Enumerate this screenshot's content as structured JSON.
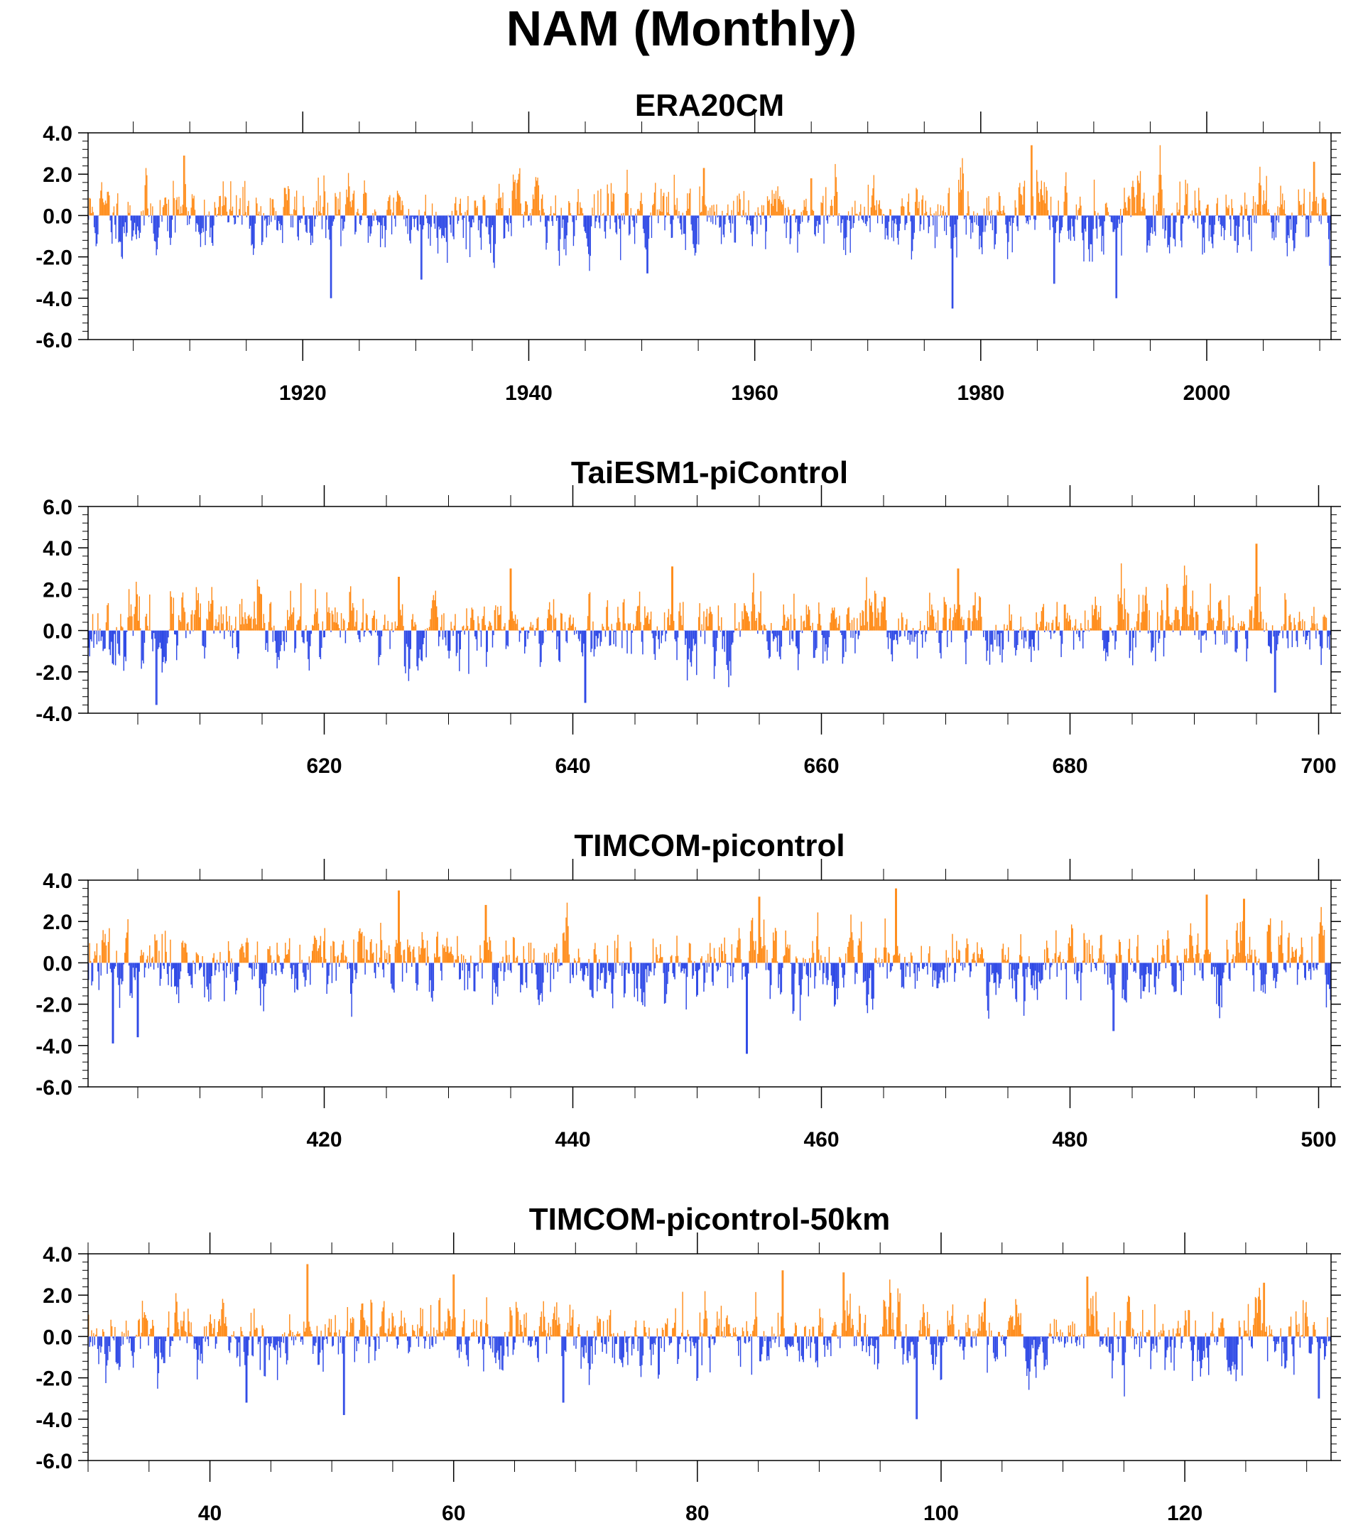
{
  "title": "NAM (Monthly)",
  "colors": {
    "positive": "#ff8c1a",
    "negative": "#2e49e6",
    "axis": "#000000"
  },
  "chart_data": [
    {
      "type": "bar",
      "title": "ERA20CM",
      "xlim": [
        1901,
        2011
      ],
      "ylim": [
        -6,
        4
      ],
      "ytick_labels": [
        "4.0",
        "2.0",
        "0.0",
        "-2.0",
        "-4.0",
        "-6.0"
      ],
      "ytick_values": [
        4,
        2,
        0,
        -2,
        -4,
        -6
      ],
      "xtick_labels": [
        "1920",
        "1940",
        "1960",
        "1980",
        "2000"
      ],
      "xtick_values": [
        1920,
        1940,
        1960,
        1980,
        2000
      ],
      "minor_x_step": 5,
      "months": 1320,
      "amp": 1.0,
      "peaks": [
        [
          1909.5,
          2.9
        ],
        [
          1922.5,
          -4.0
        ],
        [
          1930.5,
          -3.1
        ],
        [
          1950.5,
          -2.8
        ],
        [
          1955.5,
          2.3
        ],
        [
          1965,
          1.8
        ],
        [
          1977.5,
          -4.5
        ],
        [
          1984.5,
          3.4
        ],
        [
          1986.5,
          -3.3
        ],
        [
          1992,
          -4.0
        ],
        [
          2009.5,
          2.6
        ]
      ],
      "seed": 11
    },
    {
      "type": "bar",
      "title": "TaiESM1-piControl",
      "xlim": [
        601,
        701
      ],
      "ylim": [
        -4,
        6
      ],
      "ytick_labels": [
        "6.0",
        "4.0",
        "2.0",
        "0.0",
        "-2.0",
        "-4.0"
      ],
      "ytick_values": [
        6,
        4,
        2,
        0,
        -2,
        -4
      ],
      "xtick_labels": [
        "620",
        "640",
        "660",
        "680",
        "700"
      ],
      "xtick_values": [
        620,
        640,
        660,
        680,
        700
      ],
      "minor_x_step": 5,
      "months": 1200,
      "amp": 1.0,
      "peaks": [
        [
          606.5,
          -3.6
        ],
        [
          626,
          2.6
        ],
        [
          635,
          3.0
        ],
        [
          641,
          -3.5
        ],
        [
          648,
          3.1
        ],
        [
          671,
          3.0
        ],
        [
          695,
          4.2
        ],
        [
          696.5,
          -3.0
        ]
      ],
      "seed": 23
    },
    {
      "type": "bar",
      "title": "TIMCOM-picontrol",
      "xlim": [
        401,
        501
      ],
      "ylim": [
        -6,
        4
      ],
      "ytick_labels": [
        "4.0",
        "2.0",
        "0.0",
        "-2.0",
        "-4.0",
        "-6.0"
      ],
      "ytick_values": [
        4,
        2,
        0,
        -2,
        -4,
        -6
      ],
      "xtick_labels": [
        "420",
        "440",
        "460",
        "480",
        "500"
      ],
      "xtick_values": [
        420,
        440,
        460,
        480,
        500
      ],
      "minor_x_step": 5,
      "months": 1200,
      "amp": 1.0,
      "peaks": [
        [
          403,
          -3.9
        ],
        [
          405,
          -3.6
        ],
        [
          426,
          3.5
        ],
        [
          433,
          2.8
        ],
        [
          454,
          -4.4
        ],
        [
          455,
          3.2
        ],
        [
          466,
          3.6
        ],
        [
          483.5,
          -3.3
        ],
        [
          491,
          3.3
        ],
        [
          494,
          3.1
        ]
      ],
      "seed": 37
    },
    {
      "type": "bar",
      "title": "TIMCOM-picontrol-50km",
      "xlim": [
        30,
        132
      ],
      "ylim": [
        -6,
        4
      ],
      "ytick_labels": [
        "4.0",
        "2.0",
        "0.0",
        "-2.0",
        "-4.0",
        "-6.0"
      ],
      "ytick_values": [
        4,
        2,
        0,
        -2,
        -4,
        -6
      ],
      "xtick_labels": [
        "40",
        "60",
        "80",
        "100",
        "120"
      ],
      "xtick_values": [
        40,
        60,
        80,
        100,
        120
      ],
      "minor_x_step": 5,
      "months": 1224,
      "amp": 1.0,
      "peaks": [
        [
          43,
          -3.2
        ],
        [
          48,
          3.5
        ],
        [
          51,
          -3.8
        ],
        [
          60,
          3.0
        ],
        [
          69,
          -3.2
        ],
        [
          87,
          3.2
        ],
        [
          92,
          3.1
        ],
        [
          98,
          -4.0
        ],
        [
          112,
          2.9
        ],
        [
          126.5,
          2.6
        ],
        [
          131,
          -3.0
        ]
      ],
      "seed": 53
    }
  ]
}
